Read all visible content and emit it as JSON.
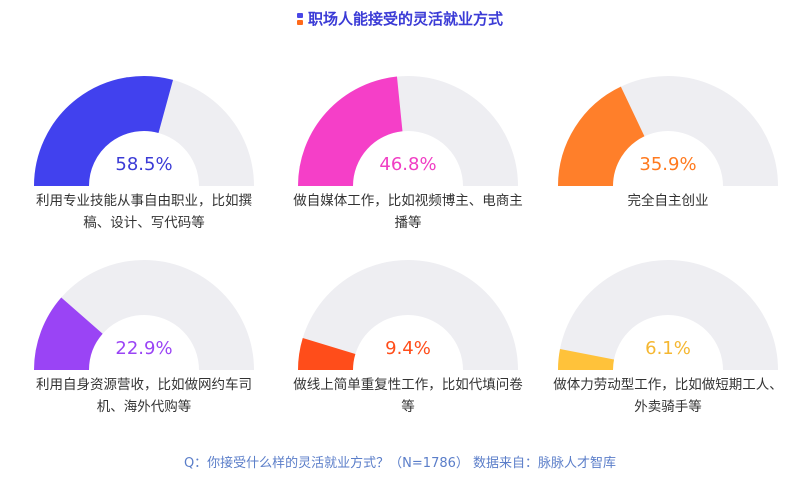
{
  "chart_data": {
    "type": "gauge",
    "title": "职场人能接受的灵活就业方式",
    "max": 100,
    "items": [
      {
        "label": "利用专业技能从事自由职业，比如撰稿、设计、写代码等",
        "value": 58.5,
        "value_label": "58.5%",
        "color": "#4141ee",
        "text_color": "#3b3bd6"
      },
      {
        "label": "做自媒体工作，比如视频博主、电商主播等",
        "value": 46.8,
        "value_label": "46.8%",
        "color": "#f53fc8",
        "text_color": "#f03ec4"
      },
      {
        "label": "完全自主创业",
        "value": 35.9,
        "value_label": "35.9%",
        "color": "#ff7f2a",
        "text_color": "#ff7a1f"
      },
      {
        "label": "利用自身资源营收，比如做网约车司机、海外代购等",
        "value": 22.9,
        "value_label": "22.9%",
        "color": "#9a44f5",
        "text_color": "#9a44f5"
      },
      {
        "label": "做线上简单重复性工作，比如代填问卷等",
        "value": 9.4,
        "value_label": "9.4%",
        "color": "#ff4d1a",
        "text_color": "#ff4d1a"
      },
      {
        "label": "做体力劳动型工作，比如做短期工人、外卖骑手等",
        "value": 6.1,
        "value_label": "6.1%",
        "color": "#ffc23a",
        "text_color": "#f5b731"
      }
    ],
    "track_color": "#eeeef2"
  },
  "footer": "Q：你接受什么样的灵活就业方式？（N=1786）  数据来自：脉脉人才智库"
}
